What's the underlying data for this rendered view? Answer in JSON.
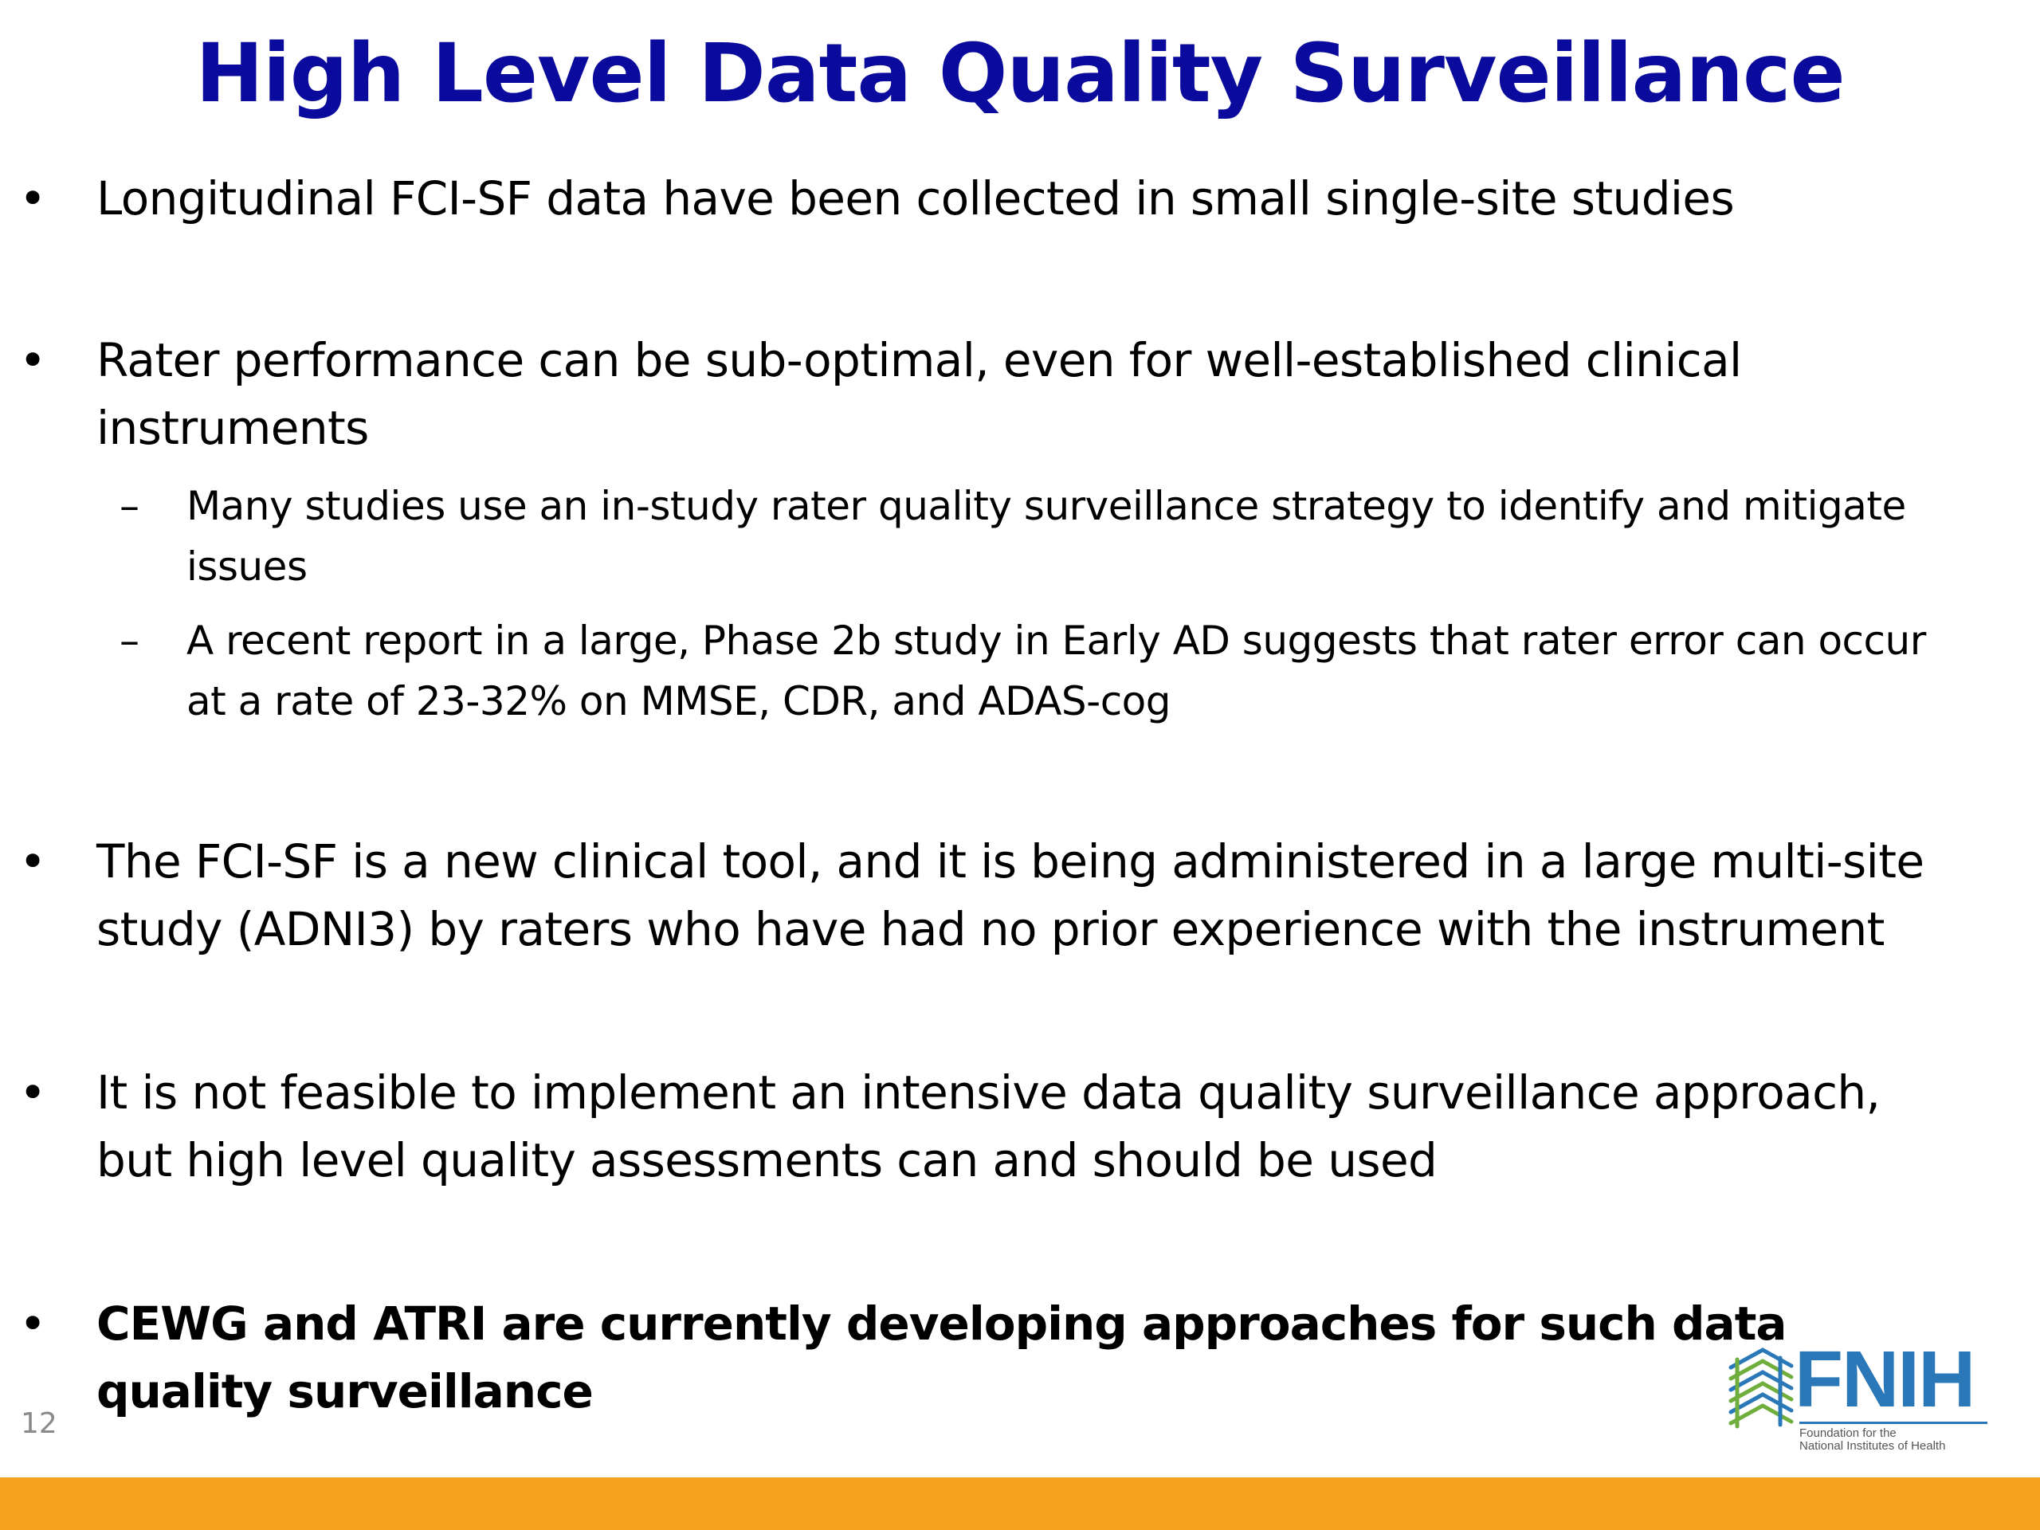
{
  "slide": {
    "title": "High Level Data Quality Surveillance",
    "page_number": "12"
  },
  "bullets": [
    {
      "marker": "•",
      "text": "Longitudinal FCI-SF data have been collected in small single-site studies"
    },
    {
      "marker": "•",
      "text": "Rater performance can be sub-optimal, even for well-established clinical instruments",
      "sub": [
        {
          "marker": "–",
          "text": "Many studies use an in-study rater quality surveillance strategy to identify and mitigate issues"
        },
        {
          "marker": "–",
          "text": "A recent report in a large, Phase 2b study in Early AD suggests that rater error can occur at a rate of 23-32% on MMSE, CDR, and ADAS-cog"
        }
      ]
    },
    {
      "marker": "•",
      "text": "The FCI-SF is a new clinical tool, and it is being administered in a large multi-site study (ADNI3) by raters who have had no prior experience with the instrument"
    },
    {
      "marker": "•",
      "text": "It is not feasible to implement an intensive data quality surveillance approach, but high level quality assessments can and should be used"
    },
    {
      "marker": "•",
      "text": "CEWG and ATRI are currently developing approaches for such data quality surveillance",
      "bold": true
    }
  ],
  "logo": {
    "wordmark": "FNIH",
    "subtitle_line1": "Foundation for the",
    "subtitle_line2": "National Institutes of Health",
    "icon": "fnih-helix-icon"
  },
  "colors": {
    "title": "#0a0a9c",
    "text": "#000000",
    "bottom_bar": "#f5a31f",
    "logo_blue": "#2a78b8",
    "logo_green": "#6fae3c",
    "page_number": "#8a8a8a"
  }
}
